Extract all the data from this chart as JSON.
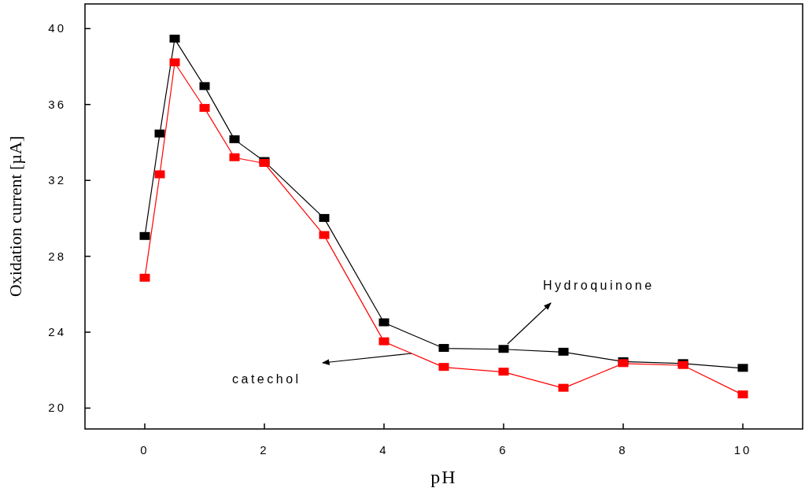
{
  "chart_data": {
    "type": "line",
    "xlabel": "pH",
    "ylabel": "Oxidation current [µA]",
    "x": [
      0,
      0.25,
      0.5,
      1,
      1.5,
      2,
      3,
      4,
      5,
      6,
      7,
      8,
      9,
      10
    ],
    "series": [
      {
        "color": "#000000",
        "values": [
          29.05,
          34.45,
          39.45,
          36.95,
          34.15,
          33.0,
          30.0,
          24.5,
          23.15,
          23.1,
          22.95,
          22.45,
          22.35,
          22.1
        ]
      },
      {
        "color": "#ff0000",
        "values": [
          26.85,
          32.3,
          38.2,
          35.8,
          33.2,
          32.9,
          29.1,
          23.5,
          22.15,
          21.9,
          21.05,
          22.35,
          22.25,
          20.7
        ]
      }
    ],
    "xlim": [
      -1,
      11
    ],
    "ylim": [
      18.9,
      41.3
    ],
    "xticks": [
      0,
      2,
      4,
      6,
      8,
      10
    ],
    "yticks": [
      20,
      24,
      28,
      32,
      36,
      40
    ],
    "annotations": [
      "Hydroquinone",
      "catechol"
    ],
    "grid": false,
    "legend": false,
    "marker": "square",
    "line_style": "solid"
  }
}
